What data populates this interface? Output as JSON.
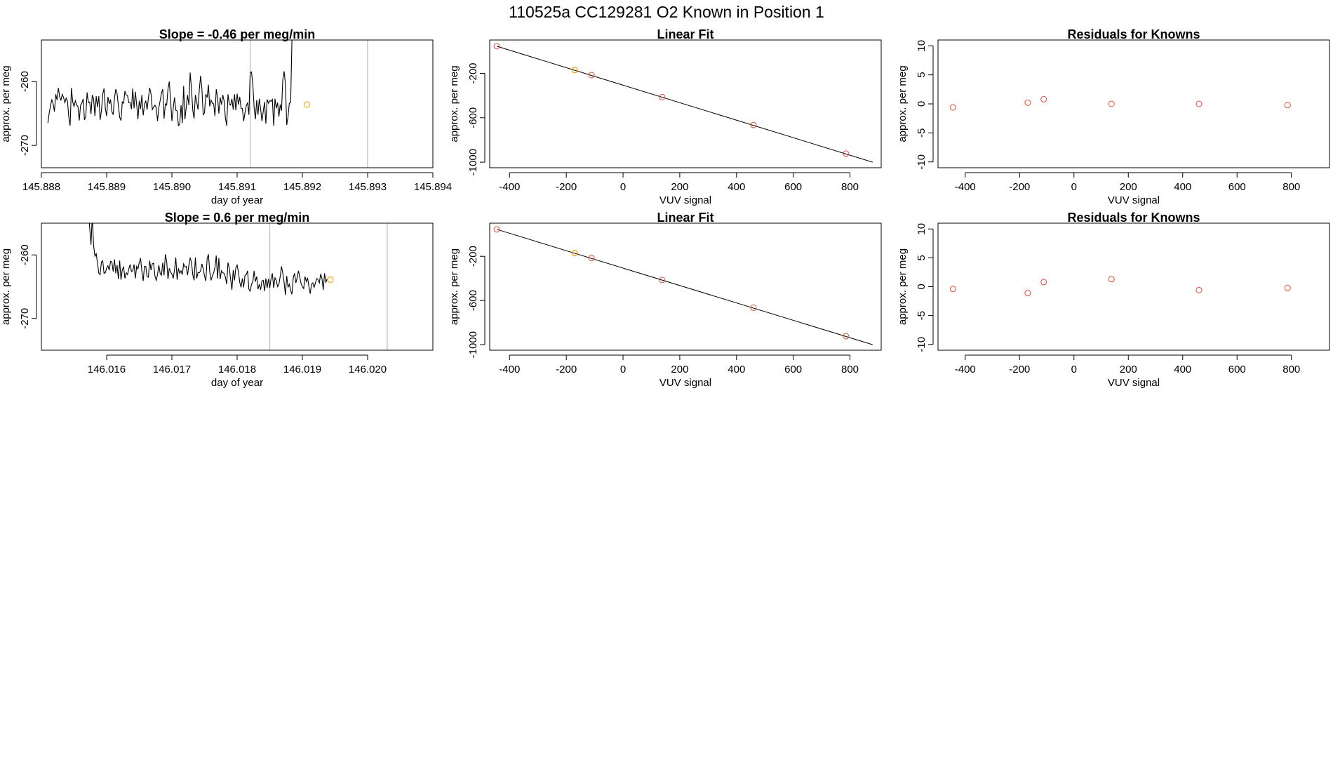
{
  "page_title": "110525a      CC129281    O2 Known in Position  1",
  "colors": {
    "line": "#000000",
    "frame": "#000000",
    "vline": "#bebebe",
    "known_point": "#e34a33",
    "highlight_point": "#ffa500"
  },
  "chart_data": [
    {
      "type": "line",
      "title": "Slope =  -0.46  per meg/min",
      "xlabel": "day of year",
      "ylabel": "approx. per meg",
      "xlim": [
        145.888,
        145.894
      ],
      "ylim": [
        -273.5,
        -253.5
      ],
      "xticks": [
        145.888,
        145.889,
        145.89,
        145.891,
        145.892,
        145.893,
        145.894
      ],
      "xtick_labels": [
        "145.888",
        "145.889",
        "145.890",
        "145.891",
        "145.892",
        "145.893",
        "145.894"
      ],
      "yticks": [
        -270,
        -260
      ],
      "ytick_labels": [
        "-270",
        "-260"
      ],
      "vlines": [
        145.8912,
        145.893
      ],
      "series": [
        {
          "x_start": 145.8881,
          "x_step": 2e-05,
          "values": [
            -266.5,
            -264.9,
            -263.8,
            -262.8,
            -263.5,
            -264.7,
            -262.0,
            -262.9,
            -261.0,
            -262.4,
            -262.9,
            -262.0,
            -262.5,
            -263.3,
            -262.6,
            -263.1,
            -265.6,
            -266.9,
            -261.0,
            -263.2,
            -263.9,
            -263.0,
            -263.7,
            -263.9,
            -266.1,
            -263.7,
            -263.4,
            -262.7,
            -266.0,
            -265.5,
            -261.7,
            -263.3,
            -263.2,
            -265.1,
            -262.1,
            -262.7,
            -265.4,
            -262.3,
            -264.0,
            -262.3,
            -266.0,
            -264.6,
            -262.0,
            -261.1,
            -264.2,
            -265.4,
            -262.4,
            -263.5,
            -262.8,
            -264.7,
            -265.2,
            -262.6,
            -261.2,
            -261.9,
            -263.8,
            -265.6,
            -266.1,
            -263.2,
            -263.4,
            -261.5,
            -262.1,
            -262.2,
            -263.3,
            -263.3,
            -264.3,
            -261.1,
            -264.2,
            -261.6,
            -263.6,
            -265.9,
            -263.0,
            -264.3,
            -262.1,
            -265.3,
            -263.6,
            -263.0,
            -264.4,
            -262.6,
            -261.0,
            -261.9,
            -264.4,
            -264.0,
            -263.7,
            -264.1,
            -266.2,
            -264.1,
            -263.0,
            -261.8,
            -261.2,
            -265.8,
            -263.5,
            -263.7,
            -261.2,
            -260.0,
            -262.9,
            -266.2,
            -264.2,
            -262.5,
            -264.5,
            -264.6,
            -266.9,
            -266.7,
            -263.7,
            -266.5,
            -260.7,
            -265.9,
            -264.0,
            -262.1,
            -263.7,
            -258.6,
            -261.1,
            -264.5,
            -265.8,
            -262.1,
            -263.1,
            -264.4,
            -261.3,
            -259.1,
            -261.1,
            -265.2,
            -264.9,
            -262.0,
            -262.5,
            -260.5,
            -263.9,
            -262.9,
            -263.4,
            -263.5,
            -265.4,
            -261.2,
            -262.5,
            -265.0,
            -262.5,
            -263.6,
            -262.1,
            -263.0,
            -265.7,
            -266.9,
            -262.0,
            -263.5,
            -263.7,
            -262.7,
            -264.4,
            -262.0,
            -264.5,
            -261.9,
            -263.6,
            -262.4,
            -264.2,
            -264.2,
            -266.2,
            -264.9,
            -263.8,
            -263.3,
            -265.2,
            -258.6,
            -258.5,
            -260.4,
            -264.0,
            -265.9,
            -262.9,
            -265.2,
            -262.7,
            -264.3,
            -266.2,
            -264.7,
            -263.2,
            -266.6,
            -262.8,
            -263.4,
            -263.0,
            -263.1,
            -262.8,
            -266.9,
            -262.7,
            -264.2,
            -263.3,
            -265.5,
            -263.6,
            -264.6,
            -259.7,
            -258.4,
            -260.3,
            -266.8,
            -265.5,
            -263.4,
            -263.3,
            -253.5
          ]
        }
      ],
      "highlight_points": [
        {
          "x": 145.89207,
          "y": -263.6
        }
      ]
    },
    {
      "type": "scatter",
      "title": "Linear Fit",
      "xlabel": "VUV signal",
      "ylabel": "approx. per meg",
      "xlim": [
        -470,
        910
      ],
      "ylim": [
        -1050,
        100
      ],
      "xticks": [
        -400,
        -200,
        0,
        200,
        400,
        600,
        800
      ],
      "xtick_labels": [
        "-400",
        "-200",
        "0",
        "200",
        "400",
        "600",
        "800"
      ],
      "yticks": [
        -1000,
        -600,
        -200
      ],
      "ytick_labels": [
        "-1000",
        "-600",
        "-200"
      ],
      "fit_line": {
        "x": [
          -445,
          880
        ],
        "y": [
          44,
          -1000
        ]
      },
      "points": {
        "x": [
          -445,
          -170,
          -111,
          138,
          460,
          786
        ],
        "y": [
          44,
          -170,
          -216,
          -414,
          -665,
          -923
        ]
      },
      "highlight_points": [
        {
          "x": -170,
          "y": -170
        }
      ]
    },
    {
      "type": "scatter",
      "title": "Residuals for Knowns",
      "xlabel": "VUV signal",
      "ylabel": "approx. per meg",
      "xlim": [
        -500,
        940
      ],
      "ylim": [
        -11,
        11
      ],
      "xticks": [
        -400,
        -200,
        0,
        200,
        400,
        600,
        800
      ],
      "xtick_labels": [
        "-400",
        "-200",
        "0",
        "200",
        "400",
        "600",
        "800"
      ],
      "yticks": [
        -10,
        -5,
        0,
        5,
        10
      ],
      "ytick_labels": [
        "-10",
        "-5",
        "0",
        "5",
        "10"
      ],
      "points": {
        "x": [
          -445,
          -170,
          -111,
          138,
          460,
          786
        ],
        "y": [
          -0.6,
          0.2,
          0.8,
          0.0,
          0.0,
          -0.2
        ]
      }
    },
    {
      "type": "line",
      "title": "Slope =  0.6  per meg/min",
      "xlabel": "day of year",
      "ylabel": "approx. per meg",
      "xlim": [
        146.015,
        146.021
      ],
      "ylim": [
        -275,
        -255
      ],
      "xticks": [
        146.016,
        146.017,
        146.018,
        146.019,
        146.02
      ],
      "xtick_labels": [
        "146.016",
        "146.017",
        "146.018",
        "146.019",
        "146.020"
      ],
      "yticks": [
        -270,
        -260
      ],
      "ytick_labels": [
        "-270",
        "-260"
      ],
      "vlines": [
        146.0185,
        146.0203
      ],
      "series": [
        {
          "x_start": 146.0157,
          "x_step": 2e-05,
          "values": [
            -254.0,
            -253.6,
            -255.7,
            -258.4,
            -253.8,
            -258.5,
            -260.2,
            -259.8,
            -261.3,
            -262.9,
            -263.1,
            -261.1,
            -260.9,
            -262.9,
            -262.8,
            -262.1,
            -261.7,
            -262.4,
            -261.0,
            -261.1,
            -262.6,
            -260.7,
            -262.9,
            -261.6,
            -263.8,
            -260.9,
            -263.9,
            -262.3,
            -261.9,
            -263.7,
            -262.8,
            -263.1,
            -262.2,
            -261.5,
            -262.6,
            -262.5,
            -261.5,
            -263.7,
            -261.8,
            -262.2,
            -261.2,
            -260.5,
            -262.6,
            -264.1,
            -261.8,
            -261.8,
            -263.4,
            -263.5,
            -260.9,
            -262.4,
            -261.4,
            -261.3,
            -263.3,
            -264.0,
            -263.1,
            -261.6,
            -262.9,
            -263.2,
            -261.2,
            -263.2,
            -259.9,
            -261.0,
            -263.8,
            -262.1,
            -262.7,
            -263.0,
            -263.7,
            -262.4,
            -260.4,
            -263.9,
            -262.1,
            -262.9,
            -262.5,
            -263.1,
            -261.4,
            -261.9,
            -261.8,
            -263.2,
            -261.6,
            -260.5,
            -261.1,
            -263.1,
            -264.0,
            -260.4,
            -263.7,
            -262.8,
            -262.8,
            -262.5,
            -261.4,
            -262.2,
            -263.3,
            -264.1,
            -260.6,
            -259.9,
            -262.6,
            -264.0,
            -263.3,
            -262.8,
            -262.0,
            -260.1,
            -263.7,
            -260.5,
            -263.8,
            -262.5,
            -262.8,
            -262.9,
            -263.5,
            -264.6,
            -261.2,
            -262.1,
            -263.8,
            -265.5,
            -262.4,
            -264.0,
            -262.0,
            -261.6,
            -262.7,
            -264.3,
            -265.1,
            -263.7,
            -265.1,
            -263.2,
            -263.1,
            -262.5,
            -265.4,
            -265.7,
            -264.6,
            -264.3,
            -262.5,
            -264.2,
            -263.4,
            -265.4,
            -264.6,
            -265.5,
            -264.1,
            -264.0,
            -265.7,
            -263.7,
            -265.2,
            -263.8,
            -265.2,
            -263.7,
            -262.9,
            -265.2,
            -263.6,
            -264.0,
            -265.0,
            -264.6,
            -263.4,
            -261.8,
            -262.9,
            -264.3,
            -266.3,
            -263.3,
            -265.1,
            -264.6,
            -265.6,
            -266.2,
            -263.6,
            -262.9,
            -264.4,
            -263.6,
            -262.5,
            -263.5,
            -264.5,
            -265.0,
            -265.3,
            -263.4,
            -264.2,
            -263.6,
            -265.0,
            -266.1,
            -264.6,
            -264.4,
            -265.1,
            -264.4,
            -263.7,
            -263.9,
            -264.4,
            -263.0,
            -263.7,
            -265.5,
            -262.9,
            -264.3,
            -263.8
          ]
        }
      ],
      "highlight_points": [
        {
          "x": 146.01943,
          "y": -263.9
        }
      ]
    },
    {
      "type": "scatter",
      "title": "Linear Fit",
      "xlabel": "VUV signal",
      "ylabel": "approx. per meg",
      "xlim": [
        -470,
        910
      ],
      "ylim": [
        -1050,
        100
      ],
      "xticks": [
        -400,
        -200,
        0,
        200,
        400,
        600,
        800
      ],
      "xtick_labels": [
        "-400",
        "-200",
        "0",
        "200",
        "400",
        "600",
        "800"
      ],
      "yticks": [
        -1000,
        -600,
        -200
      ],
      "ytick_labels": [
        "-1000",
        "-600",
        "-200"
      ],
      "fit_line": {
        "x": [
          -445,
          880
        ],
        "y": [
          44,
          -1000
        ]
      },
      "points": {
        "x": [
          -445,
          -170,
          -111,
          138,
          460,
          786
        ],
        "y": [
          44,
          -170,
          -216,
          -414,
          -665,
          -923
        ]
      },
      "highlight_points": [
        {
          "x": -170,
          "y": -170
        }
      ]
    },
    {
      "type": "scatter",
      "title": "Residuals for Knowns",
      "xlabel": "VUV signal",
      "ylabel": "approx. per meg",
      "xlim": [
        -500,
        940
      ],
      "ylim": [
        -11,
        11
      ],
      "xticks": [
        -400,
        -200,
        0,
        200,
        400,
        600,
        800
      ],
      "xtick_labels": [
        "-400",
        "-200",
        "0",
        "200",
        "400",
        "600",
        "800"
      ],
      "yticks": [
        -10,
        -5,
        0,
        5,
        10
      ],
      "ytick_labels": [
        "-10",
        "-5",
        "0",
        "5",
        "10"
      ],
      "points": {
        "x": [
          -445,
          -170,
          -111,
          138,
          460,
          786
        ],
        "y": [
          -0.4,
          -1.1,
          0.8,
          1.3,
          -0.6,
          -0.2
        ]
      }
    }
  ]
}
